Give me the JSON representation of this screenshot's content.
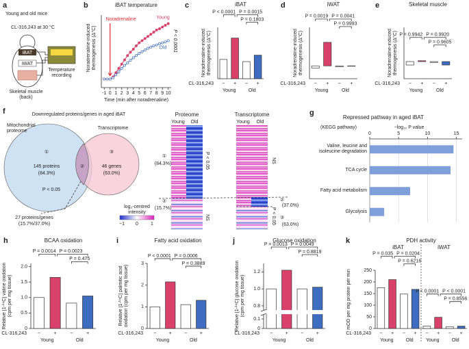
{
  "panel_a": {
    "letter": "a",
    "title": "Young and old mice",
    "condition": "CL-316,243 at 30 °C",
    "tissues": [
      "iBAT",
      "iWAT"
    ],
    "muscle": [
      "Skeletal muscle",
      "(back)"
    ],
    "device": [
      "Temperature",
      "recording"
    ]
  },
  "panel_f": {
    "letter": "f",
    "title": "Downregulated proteins/genes in aged iBAT",
    "left_title": [
      "Mitochondrial",
      "proteome"
    ],
    "right_title": "Transcriptome",
    "left": {
      "id": "①",
      "count": "145 proteins",
      "pct": "(84.3%)"
    },
    "middle": "②",
    "right": {
      "id": "③",
      "count": "46 genes",
      "pct": "(63.0%)"
    },
    "p": "P < 0.05",
    "overlap": [
      "27 proteins/genes",
      "(15.7%/37.0%)"
    ],
    "heatmap_titles": [
      "Proteome",
      "Transcriptome"
    ],
    "columns": [
      "Young",
      "Old",
      "Young",
      "Old"
    ],
    "proteome_left": [
      "①",
      "(84.3%)",
      "②",
      "(15.7%)"
    ],
    "proteome_right": [
      "P < 0.05",
      "NS"
    ],
    "transcriptome_right": [
      "NS",
      "②",
      "(37.0%)",
      "P < 0.05",
      "③",
      "(63.0%)"
    ],
    "legend_title": [
      "log₂-centred",
      "intensity"
    ],
    "legend_ticks": [
      "−1",
      "0",
      "1"
    ]
  },
  "chart_data": [
    {
      "type": "line",
      "letter": "b",
      "title": "iBAT temperature",
      "xlabel": "Time (min after noradrenaline)",
      "ylabel": "Noradrenaline-induced thermogenesis (Δ°C)",
      "x": [
        -1,
        -0.5,
        0,
        0.5,
        1,
        1.5,
        2,
        2.5,
        3,
        3.5,
        4,
        4.5,
        5,
        5.5,
        6,
        6.5,
        7,
        7.5,
        8,
        8.5,
        9,
        9.5,
        10
      ],
      "series": [
        {
          "name": "Young",
          "color": "#d9416b",
          "values": [
            0,
            0,
            0,
            0.05,
            0.15,
            0.25,
            0.35,
            0.45,
            0.55,
            0.63,
            0.7,
            0.78,
            0.85,
            0.9,
            0.95,
            1.0,
            1.05,
            1.1,
            1.15,
            1.18,
            1.22,
            1.26,
            1.3
          ]
        },
        {
          "name": "Old",
          "color": "#3d6cc0",
          "values": [
            0,
            0,
            0,
            0.03,
            0.1,
            0.17,
            0.25,
            0.32,
            0.38,
            0.44,
            0.5,
            0.55,
            0.6,
            0.64,
            0.68,
            0.72,
            0.75,
            0.78,
            0.8,
            0.83,
            0.85,
            0.87,
            0.9
          ]
        }
      ],
      "xlim": [
        -1.5,
        10.5
      ],
      "xticks": [
        -1,
        0,
        1,
        2,
        3,
        4,
        5,
        6,
        7,
        8,
        9,
        10
      ],
      "ylim": [
        -0.2,
        1.5
      ],
      "annotation": {
        "text": "Noradrenaline",
        "x": 0,
        "color": "#e0282e"
      },
      "p_value": "P < 0.0001"
    },
    {
      "type": "bar",
      "letter": "c",
      "title": "iBAT",
      "ylabel": "Noradrenaline-induced thermogenesis (Δ°C)",
      "row_label": "CL-316,243",
      "categories": [
        "−",
        "+",
        "−",
        "+"
      ],
      "groups": [
        "Young",
        "Old"
      ],
      "values": [
        0.45,
        0.95,
        0.4,
        0.55
      ],
      "colors": [
        "#ffffff",
        "#d9416b",
        "#ffffff",
        "#3d6cc0"
      ],
      "ylim": [
        0,
        1.2
      ],
      "annotations": [
        "P < 0.0001",
        "P = 0.0015",
        "P = 0.1803"
      ]
    },
    {
      "type": "bar",
      "letter": "d",
      "title": "iWAT",
      "ylabel": "Noradrenaline-induced thermogenesis (Δ°C)",
      "row_label": "CL-316,243",
      "categories": [
        "−",
        "+",
        "−",
        "+"
      ],
      "groups": [
        "Young",
        "Old"
      ],
      "values": [
        -0.05,
        0.55,
        -0.02,
        0.0
      ],
      "colors": [
        "#ffffff",
        "#d9416b",
        "#ffffff",
        "#3d6cc0"
      ],
      "ylim": [
        -0.3,
        0.9
      ],
      "annotations": [
        "P = 0.0019",
        "P = 0.0041",
        "P = 0.9993"
      ]
    },
    {
      "type": "bar",
      "letter": "e",
      "title": "Skeletal muscle",
      "ylabel": "Noradrenaline-induced thermogenesis (Δ°C)",
      "row_label": "CL-316,243",
      "categories": [
        "−",
        "+",
        "−",
        "+"
      ],
      "groups": [
        "Young",
        "Old"
      ],
      "values": [
        -0.08,
        0.02,
        -0.02,
        -0.08
      ],
      "colors": [
        "#ffffff",
        "#d9416b",
        "#ffffff",
        "#3d6cc0"
      ],
      "ylim": [
        -0.4,
        0.8
      ],
      "annotations": [
        "P = 0.9942",
        "P = 0.9920",
        "P = 0.9605"
      ]
    },
    {
      "type": "hbar",
      "letter": "g",
      "title": "Repressed pathway in aged iBAT",
      "subtitle": "(KEGG pathway)",
      "xlabel": "−log₁₀ P value",
      "categories": [
        "Valine, leucine and isoleucine degradation",
        "TCA cycle",
        "Fatty acid metabolism",
        "Glycolysis"
      ],
      "values": [
        14.5,
        14,
        7,
        2.5
      ],
      "color": "#7f9fda",
      "xlim": [
        0,
        16
      ],
      "xticks": [
        0,
        5,
        10,
        15
      ],
      "grid": true
    },
    {
      "type": "bar",
      "letter": "h",
      "title": "BCAA oxidation",
      "ylabel": "Relative [1-¹⁴C] valine oxidation (cpm per mg tissue)",
      "row_label": "CL-316,243",
      "categories": [
        "−",
        "+",
        "−",
        "+"
      ],
      "groups": [
        "Young",
        "Old"
      ],
      "values": [
        1.0,
        1.65,
        0.82,
        1.05
      ],
      "colors": [
        "#ffffff",
        "#d9416b",
        "#ffffff",
        "#3d6cc0"
      ],
      "ylim": [
        0,
        2.1
      ],
      "yticks": [
        0,
        0.5,
        {
          "value": 1,
          "label": "1.0"
        },
        1.5,
        {
          "value": 2,
          "label": "2.0"
        }
      ],
      "annotations": [
        "P = 0.0014",
        "P = 0.0023",
        "P = 0.475"
      ]
    },
    {
      "type": "bar",
      "letter": "i",
      "title": "Fatty acid oxidation",
      "ylabel": "Relative [1-¹⁴C] palmitic acid oxidation (cpm per mg tissue)",
      "row_label": "CL-316,243",
      "categories": [
        "−",
        "+",
        "−",
        "+"
      ],
      "groups": [
        "Young",
        "Old"
      ],
      "values": [
        1.0,
        2.15,
        1.1,
        1.3
      ],
      "colors": [
        "#ffffff",
        "#d9416b",
        "#ffffff",
        "#3d6cc0"
      ],
      "ylim": [
        0,
        3
      ],
      "yticks": [
        0,
        1,
        2,
        3
      ],
      "annotations": [
        "P < 0.0001",
        "P = 0.0006",
        "P = 0.3889"
      ]
    },
    {
      "type": "bar",
      "letter": "j",
      "title": "Glucose oxidation",
      "ylabel": "Relative [1-¹⁴C] glucose oxidation (cpm per mg tissue)",
      "row_label": "CL-316,243",
      "categories": [
        "−",
        "+",
        "−",
        "+"
      ],
      "groups": [
        "Young",
        "Old"
      ],
      "values": [
        1.0,
        1.22,
        1.0,
        1.02
      ],
      "colors": [
        "#ffffff",
        "#d9416b",
        "#ffffff",
        "#3d6cc0"
      ],
      "ylim": [
        0,
        1.3
      ],
      "axis_break": [
        0.15,
        0.75
      ],
      "yticks": [
        0,
        0.1,
        0.8,
        {
          "value": 1,
          "label": "1.0"
        },
        1.2
      ],
      "annotations": [
        "P = 0.0013",
        "P = 0.0049",
        "P = 0.8819"
      ]
    },
    {
      "type": "bar",
      "letter": "k",
      "title": "PDH activity",
      "ylabel": "mOD per mg protein per min",
      "row_label": "CL-316,243",
      "subgroups": [
        "iBAT",
        "iWAT"
      ],
      "categories": [
        "−",
        "+",
        "−",
        "+",
        "−",
        "+",
        "−",
        "+"
      ],
      "groups": [
        "Young",
        "Old",
        "Young",
        "Old"
      ],
      "values": [
        175,
        210,
        148,
        168,
        10,
        48,
        8,
        10
      ],
      "colors": [
        "#ffffff",
        "#d9416b",
        "#ffffff",
        "#3d6cc0",
        "#ffffff",
        "#d9416b",
        "#ffffff",
        "#3d6cc0"
      ],
      "ylim": [
        0,
        250
      ],
      "yticks": [
        0,
        50,
        100,
        150,
        200,
        250
      ],
      "annotations": [
        "P = 0.035",
        "P = 0.0204",
        "P = 0.6216",
        "P < 0.0001",
        "P < 0.0001",
        "P = 0.8556"
      ]
    }
  ]
}
